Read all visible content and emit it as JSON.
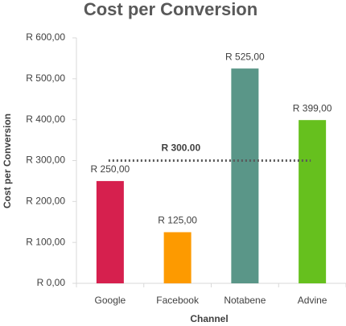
{
  "chart_data": {
    "type": "bar",
    "title": "Cost per Conversion",
    "x_label": "Channel",
    "y_label": "Cost per Conversion",
    "categories": [
      "Google",
      "Facebook",
      "Notabene",
      "Advine"
    ],
    "values": [
      250,
      125,
      525,
      399
    ],
    "value_labels": [
      "R 250,00",
      "R 125,00",
      "R 525,00",
      "R 399,00"
    ],
    "colors": [
      "#d6204e",
      "#fd9a00",
      "#5a9688",
      "#66c01e"
    ],
    "ylim": [
      0,
      600
    ],
    "yticks": [
      {
        "value": 0,
        "label": "R 0,00"
      },
      {
        "value": 100,
        "label": "R 100,00"
      },
      {
        "value": 200,
        "label": "R 200,00"
      },
      {
        "value": 300,
        "label": "R 300,00"
      },
      {
        "value": 400,
        "label": "R 400,00"
      },
      {
        "value": 500,
        "label": "R 500,00"
      },
      {
        "value": 600,
        "label": "R 600,00"
      }
    ],
    "grid": false,
    "reference_line": {
      "value": 300,
      "label": "R 300.00",
      "color": "#595959"
    }
  }
}
